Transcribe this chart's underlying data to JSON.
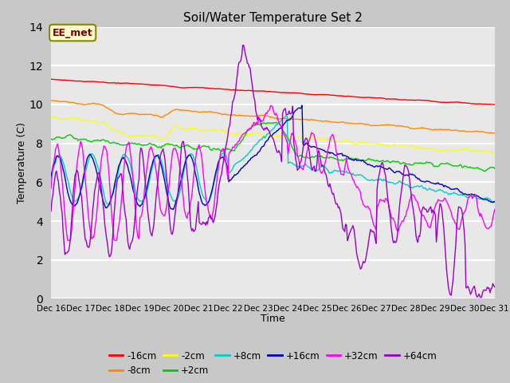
{
  "title": "Soil/Water Temperature Set 2",
  "xlabel": "Time",
  "ylabel": "Temperature (C)",
  "ylim": [
    0,
    14
  ],
  "fig_bg": "#c8c8c8",
  "plot_bg": "#e8e8e8",
  "annotation_text": "EE_met",
  "annotation_bg": "#ffffcc",
  "annotation_border": "#888800",
  "annotation_text_color": "#800000",
  "series": [
    {
      "label": "-16cm",
      "color": "#ff0000"
    },
    {
      "label": "-8cm",
      "color": "#ff8800"
    },
    {
      "label": "-2cm",
      "color": "#ffff00"
    },
    {
      "label": "+2cm",
      "color": "#00cc00"
    },
    {
      "label": "+8cm",
      "color": "#00cccc"
    },
    {
      "label": "+16cm",
      "color": "#0000bb"
    },
    {
      "label": "+32cm",
      "color": "#ff00ff"
    },
    {
      "label": "+64cm",
      "color": "#9900cc"
    }
  ],
  "n_points": 480,
  "x_start": 16,
  "x_end": 31,
  "xtick_labels": [
    "Dec 16",
    "Dec 17",
    "Dec 18",
    "Dec 19",
    "Dec 20",
    "Dec 21",
    "Dec 22",
    "Dec 23",
    "Dec 24",
    "Dec 25",
    "Dec 26",
    "Dec 27",
    "Dec 28",
    "Dec 29",
    "Dec 30",
    "Dec 31"
  ],
  "xtick_positions": [
    16,
    17,
    18,
    19,
    20,
    21,
    22,
    23,
    24,
    25,
    26,
    27,
    28,
    29,
    30,
    31
  ]
}
